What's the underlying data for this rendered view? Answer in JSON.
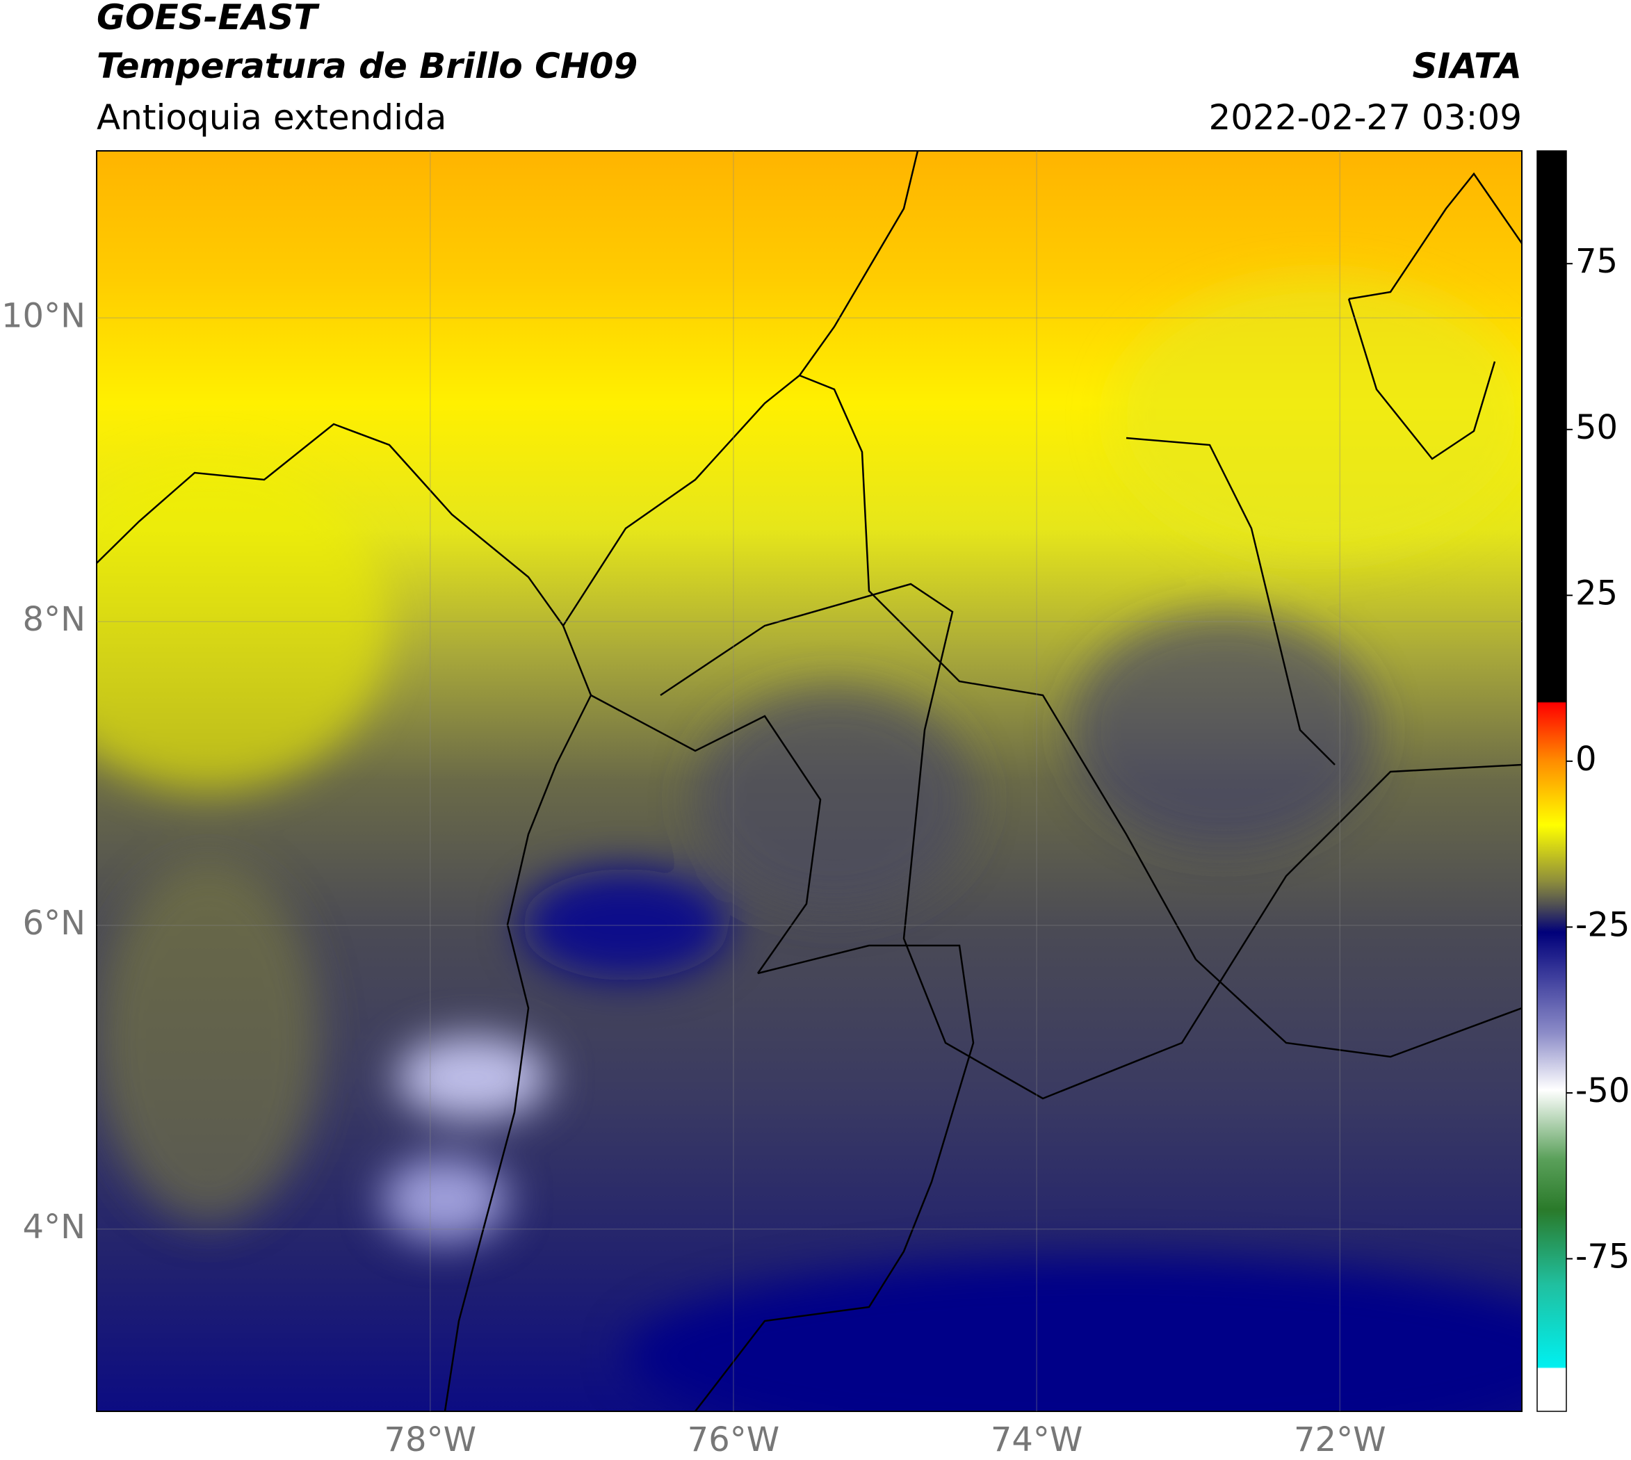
{
  "header": {
    "satellite": "GOES-EAST",
    "product": "Temperatura de Brillo CH09",
    "region": "Antioquia extendida",
    "agency": "SIATA",
    "datetime": "2022-02-27 03:09"
  },
  "map": {
    "lon_range": [
      -80.2,
      -70.8
    ],
    "lat_range": [
      2.8,
      11.1
    ],
    "lon_ticks": [
      {
        "value": -78,
        "label": "78°W"
      },
      {
        "value": -76,
        "label": "76°W"
      },
      {
        "value": -74,
        "label": "74°W"
      },
      {
        "value": -72,
        "label": "72°W"
      }
    ],
    "lat_ticks": [
      {
        "value": 4,
        "label": "4°N"
      },
      {
        "value": 6,
        "label": "6°N"
      },
      {
        "value": 8,
        "label": "8°N"
      },
      {
        "value": 10,
        "label": "10°N"
      }
    ],
    "colorbar": {
      "range": [
        -98,
        92
      ],
      "ticks": [
        -75,
        -50,
        -25,
        0,
        25,
        50,
        75
      ]
    }
  }
}
